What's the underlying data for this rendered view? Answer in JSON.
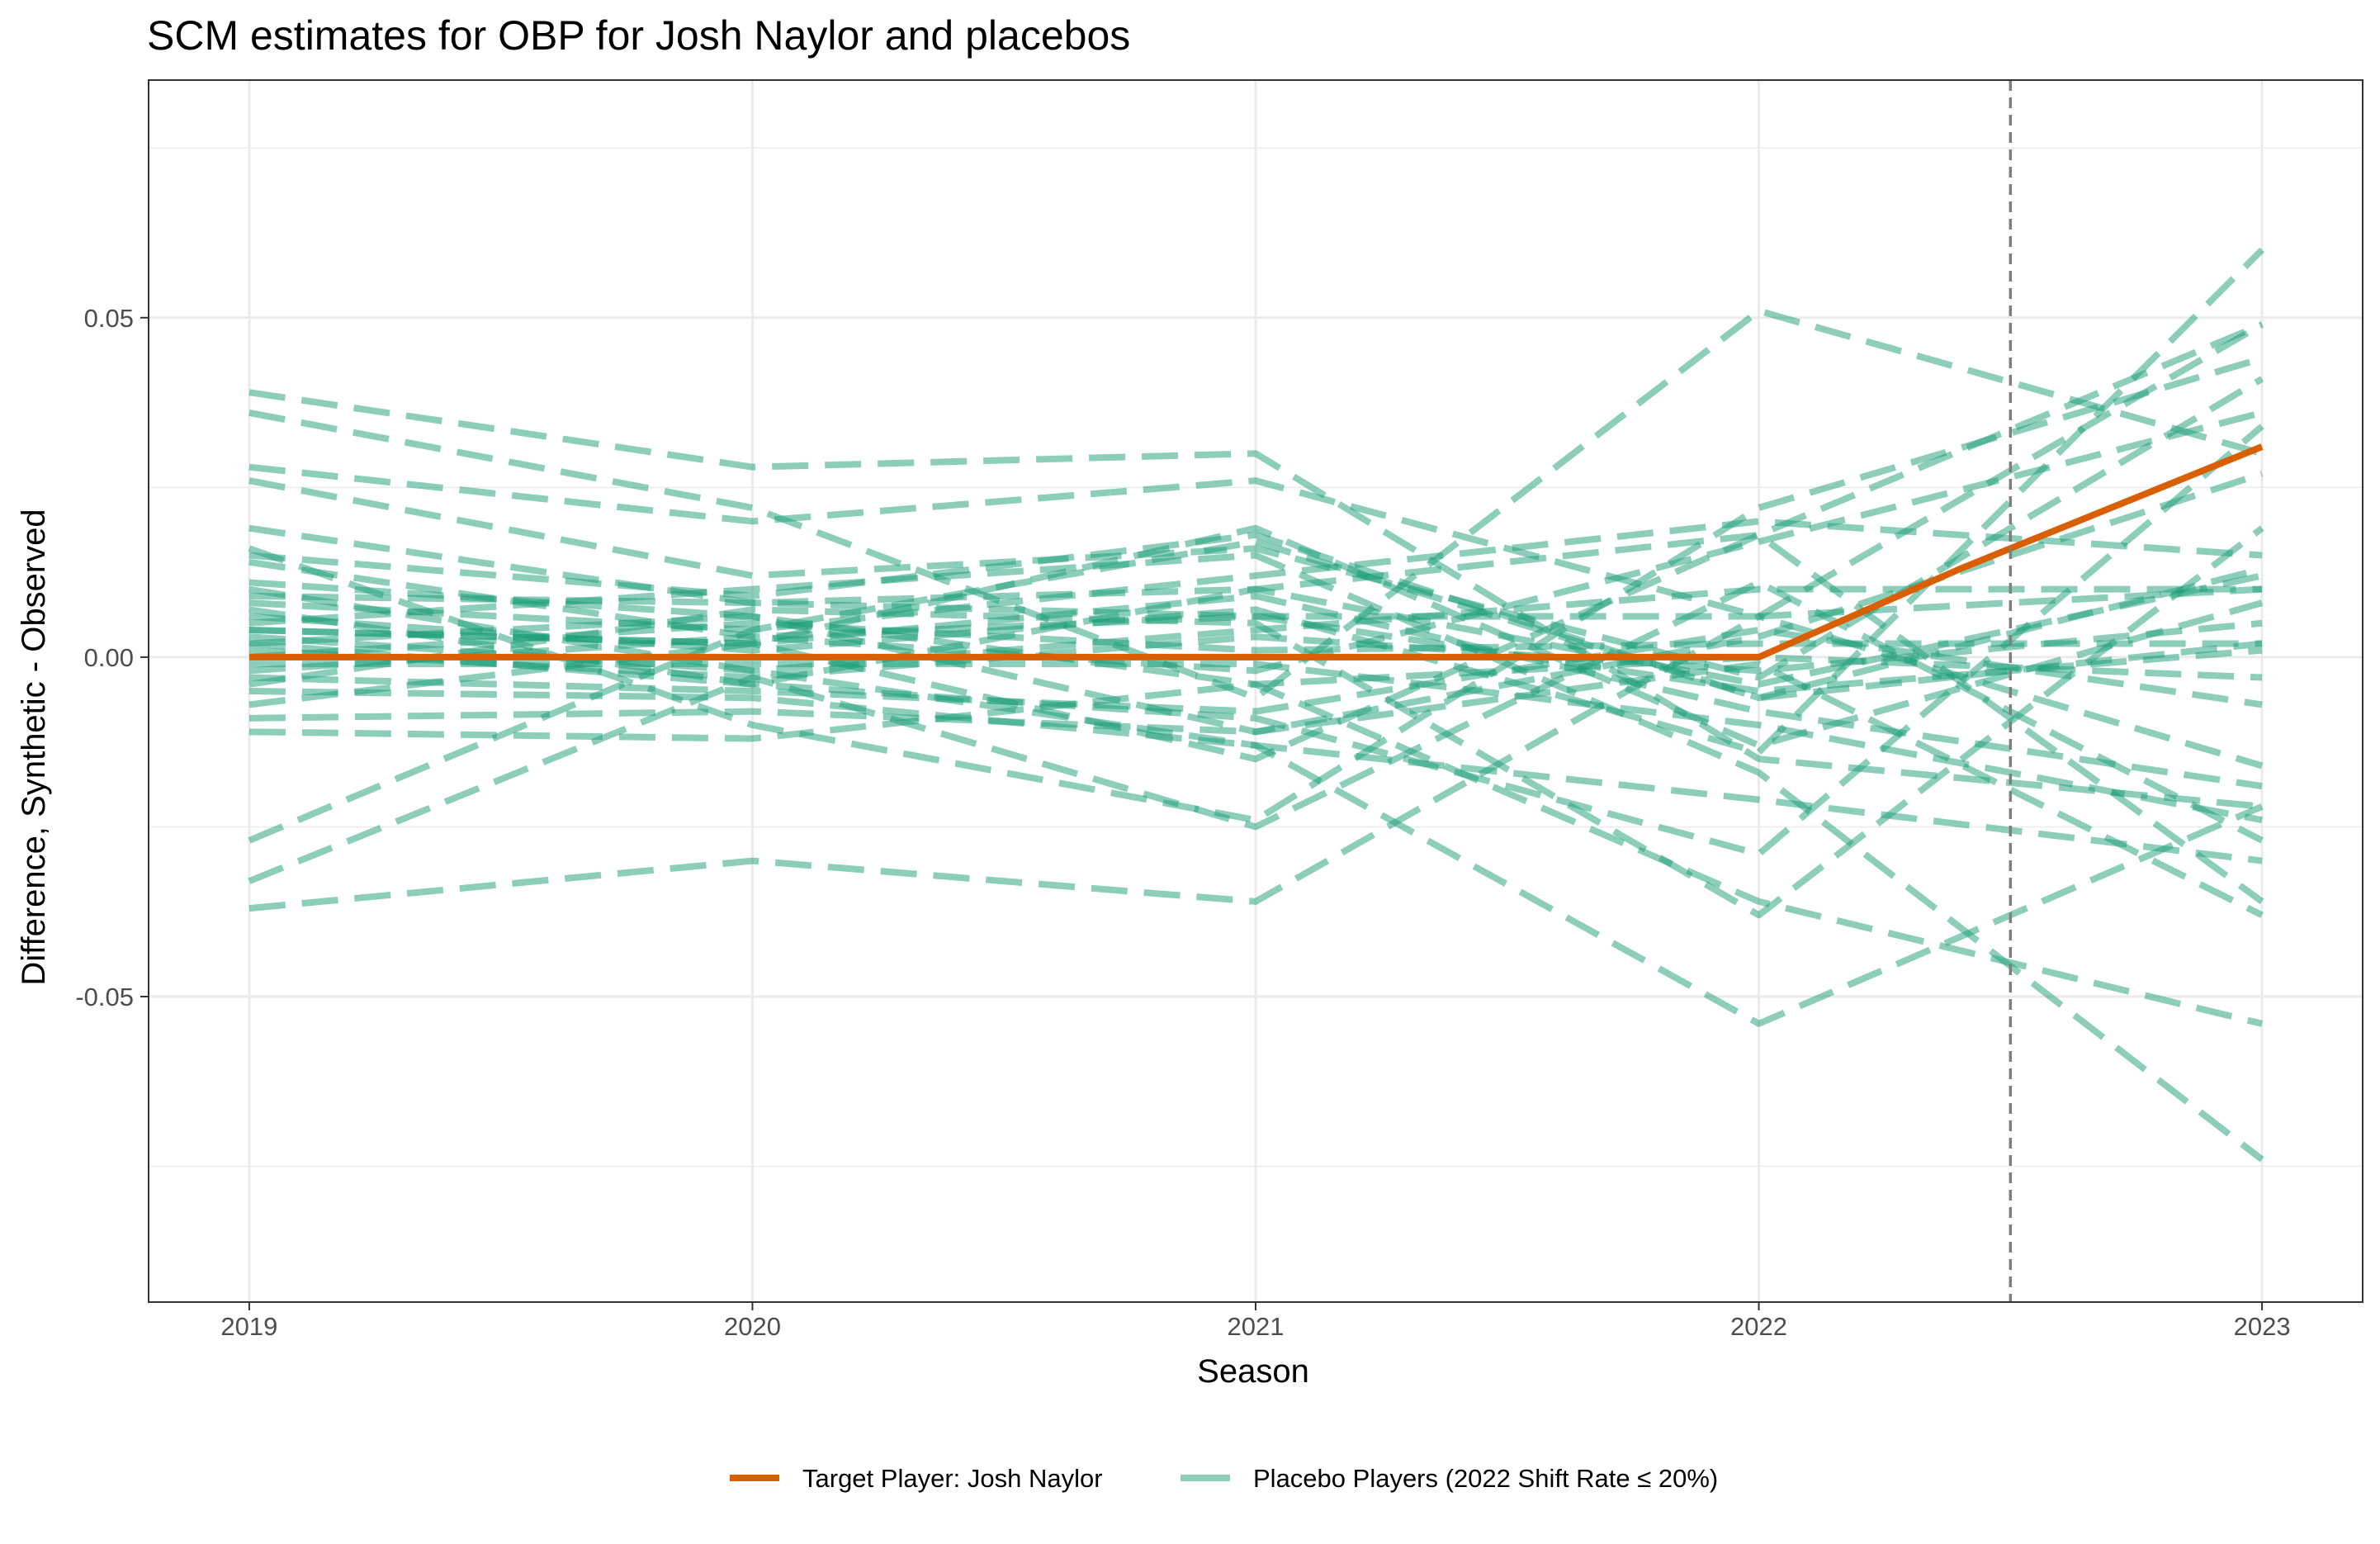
{
  "chart_data": {
    "type": "line",
    "title": "SCM estimates for OBP for Josh Naylor and placebos",
    "xlabel": "Season",
    "ylabel": "Difference, Synthetic - Observed",
    "x": [
      2019,
      2020,
      2021,
      2022,
      2023
    ],
    "xlim": [
      2018.8,
      2023.2
    ],
    "ylim": [
      -0.095,
      0.085
    ],
    "x_ticks": [
      {
        "value": 2019,
        "label": "2019"
      },
      {
        "value": 2020,
        "label": "2020"
      },
      {
        "value": 2021,
        "label": "2021"
      },
      {
        "value": 2022,
        "label": "2022"
      },
      {
        "value": 2023,
        "label": "2023"
      }
    ],
    "y_ticks": [
      {
        "value": 0.05,
        "label": "0.05"
      },
      {
        "value": 0.0,
        "label": "0.00"
      },
      {
        "value": -0.05,
        "label": "-0.05"
      }
    ],
    "y_minor_ticks": [
      0.075,
      0.025,
      -0.025,
      -0.075
    ],
    "treatment_line": 2022.5,
    "grid": true,
    "legend_position": "bottom",
    "colors": {
      "target": "#d95f02",
      "placebo": "#1b9e77",
      "treatment_line": "#7f7f7f",
      "grid": "#ebebeb",
      "panel_border": "#333333"
    },
    "target": {
      "name": "Target Player: Josh Naylor",
      "x": [
        2019,
        2020,
        2021,
        2022,
        2022.4,
        2023
      ],
      "values": [
        0.0,
        0.0,
        0.0,
        0.0,
        0.013,
        0.031
      ]
    },
    "placebo_name": "Placebo Players (2022 Shift Rate ≤ 20%)",
    "placebos": [
      [
        0.039,
        0.028,
        0.03,
        -0.015,
        -0.022
      ],
      [
        0.036,
        0.022,
        -0.006,
        0.051,
        0.03
      ],
      [
        0.028,
        0.02,
        0.026,
        0.006,
        0.049
      ],
      [
        0.026,
        0.012,
        0.016,
        -0.003,
        0.041
      ],
      [
        0.019,
        0.008,
        0.01,
        0.018,
        -0.036
      ],
      [
        0.016,
        -0.01,
        -0.024,
        0.022,
        0.044
      ],
      [
        0.015,
        0.009,
        0.018,
        -0.006,
        0.013
      ],
      [
        0.014,
        0.003,
        -0.002,
        0.017,
        0.036
      ],
      [
        0.011,
        0.006,
        -0.011,
        0.003,
        0.027
      ],
      [
        0.009,
        0.008,
        0.006,
        0.006,
        -0.016
      ],
      [
        0.008,
        0.004,
        0.012,
        0.02,
        0.015
      ],
      [
        0.007,
        -0.004,
        0.01,
        -0.004,
        0.012
      ],
      [
        0.006,
        0.001,
        0.007,
        -0.014,
        0.06
      ],
      [
        0.005,
        0.01,
        0.015,
        -0.017,
        -0.074
      ],
      [
        0.004,
        0.002,
        0.009,
        -0.008,
        -0.019
      ],
      [
        0.003,
        -0.002,
        0.004,
        0.01,
        0.01
      ],
      [
        0.002,
        0.006,
        -0.004,
        0.0,
        -0.003
      ],
      [
        0.001,
        -0.003,
        0.003,
        -0.002,
        0.005
      ],
      [
        0.0,
        0.005,
        0.001,
        0.002,
        0.002
      ],
      [
        -0.001,
        -0.001,
        -0.001,
        -0.01,
        -0.024
      ],
      [
        -0.002,
        0.003,
        0.006,
        -0.005,
        0.001
      ],
      [
        -0.003,
        -0.005,
        -0.008,
        0.004,
        -0.007
      ],
      [
        -0.005,
        -0.006,
        -0.013,
        -0.021,
        -0.03
      ],
      [
        -0.007,
        0.002,
        0.019,
        -0.013,
        0.008
      ],
      [
        -0.009,
        -0.008,
        -0.011,
        -0.001,
        -0.038
      ],
      [
        -0.011,
        -0.012,
        -0.004,
        -0.036,
        -0.054
      ],
      [
        -0.027,
        0.004,
        0.017,
        -0.006,
        0.002
      ],
      [
        -0.033,
        -0.003,
        -0.025,
        0.011,
        -0.027
      ],
      [
        -0.037,
        -0.03,
        -0.036,
        0.006,
        0.01
      ],
      [
        0.01,
        -0.002,
        -0.013,
        -0.054,
        -0.022
      ],
      [
        -0.004,
        0.007,
        0.005,
        -0.038,
        0.019
      ],
      [
        0.004,
        0.002,
        -0.015,
        0.018,
        0.049
      ],
      [
        0.002,
        -0.004,
        -0.009,
        -0.029,
        0.034
      ]
    ]
  }
}
